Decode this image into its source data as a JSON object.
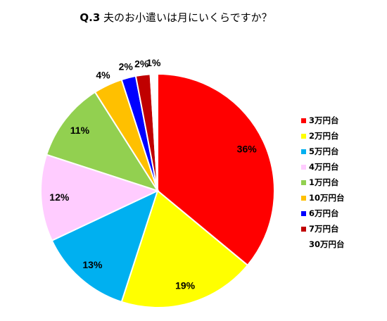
{
  "chart_data": {
    "type": "pie",
    "title_prefix": "Q.3",
    "title_text": "夫のお小遣いは月にいくらですか？",
    "slices": [
      {
        "name": "3万円台",
        "value": 36,
        "label": "36%",
        "color": "#FF0000"
      },
      {
        "name": "2万円台",
        "value": 19,
        "label": "19%",
        "color": "#FFFF00"
      },
      {
        "name": "5万円台",
        "value": 13,
        "label": "13%",
        "color": "#00B0F0"
      },
      {
        "name": "4万円台",
        "value": 12,
        "label": "12%",
        "color": "#FFCCFF"
      },
      {
        "name": "1万円台",
        "value": 11,
        "label": "11%",
        "color": "#92D050"
      },
      {
        "name": "10万円台",
        "value": 4,
        "label": "4%",
        "color": "#FFC000"
      },
      {
        "name": "6万円台",
        "value": 2,
        "label": "2%",
        "color": "#0000FF"
      },
      {
        "name": "7万円台",
        "value": 2,
        "label": "2%",
        "color": "#C00000"
      },
      {
        "name": "30万円台",
        "value": 1,
        "label": "1%",
        "color": "#FFFFFF"
      }
    ],
    "legend_position": "right",
    "start_angle": "12 o'clock",
    "direction": "clockwise"
  }
}
